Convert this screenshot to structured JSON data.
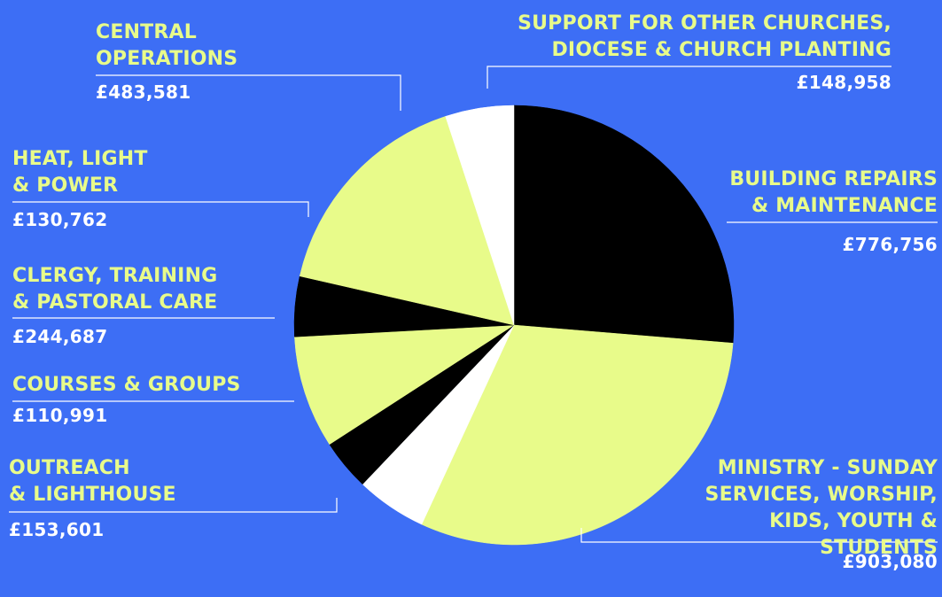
{
  "colors": {
    "background": "#3d6ef5",
    "label": "#e8fb8a",
    "value": "#ffffff",
    "black": "#000000",
    "lime": "#e8fb8a",
    "white": "#ffffff",
    "leader": "#ffffff"
  },
  "chart_data": {
    "type": "pie",
    "start_angle_deg": 0,
    "direction": "clockwise",
    "slices": [
      {
        "label": "BUILDING REPAIRS & MAINTENANCE",
        "value_text": "£776,756",
        "value": 776756,
        "color": "#000000"
      },
      {
        "label": "MINISTRY - SUNDAY SERVICES, WORSHIP, KIDS, YOUTH & STUDENTS",
        "value_text": "£903,080",
        "value": 903080,
        "color": "#e8fb8a"
      },
      {
        "label": "OUTREACH & LIGHTHOUSE",
        "value_text": "£153,601",
        "value": 153601,
        "color": "#ffffff"
      },
      {
        "label": "COURSES & GROUPS",
        "value_text": "£110,991",
        "value": 110991,
        "color": "#000000"
      },
      {
        "label": "CLERGY, TRAINING & PASTORAL CARE",
        "value_text": "£244,687",
        "value": 244687,
        "color": "#e8fb8a"
      },
      {
        "label": "HEAT, LIGHT & POWER",
        "value_text": "£130,762",
        "value": 130762,
        "color": "#000000"
      },
      {
        "label": "CENTRAL OPERATIONS",
        "value_text": "£483,581",
        "value": 483581,
        "color": "#e8fb8a"
      },
      {
        "label": "SUPPORT FOR OTHER CHURCHES, DIOCESE & CHURCH PLANTING",
        "value_text": "£148,958",
        "value": 148958,
        "color": "#ffffff"
      }
    ]
  },
  "labels": {
    "central": {
      "line1": "CENTRAL",
      "line2": "OPERATIONS",
      "value": "£483,581"
    },
    "support": {
      "line1": "SUPPORT FOR OTHER CHURCHES,",
      "line2": "DIOCESE & CHURCH PLANTING",
      "value": "£148,958"
    },
    "heat": {
      "line1": "HEAT, LIGHT",
      "line2": "& POWER",
      "value": "£130,762"
    },
    "building": {
      "line1": "BUILDING REPAIRS",
      "line2": "& MAINTENANCE",
      "value": "£776,756"
    },
    "clergy": {
      "line1": "CLERGY, TRAINING",
      "line2": "& PASTORAL CARE",
      "value": "£244,687"
    },
    "courses": {
      "line1": "COURSES & GROUPS",
      "value": "£110,991"
    },
    "outreach": {
      "line1": "OUTREACH",
      "line2": "& LIGHTHOUSE",
      "value": "£153,601"
    },
    "ministry": {
      "line1": "MINISTRY - SUNDAY",
      "line2": "SERVICES, WORSHIP,",
      "line3": "KIDS, YOUTH &",
      "line4": "STUDENTS",
      "value": "£903,080"
    }
  }
}
